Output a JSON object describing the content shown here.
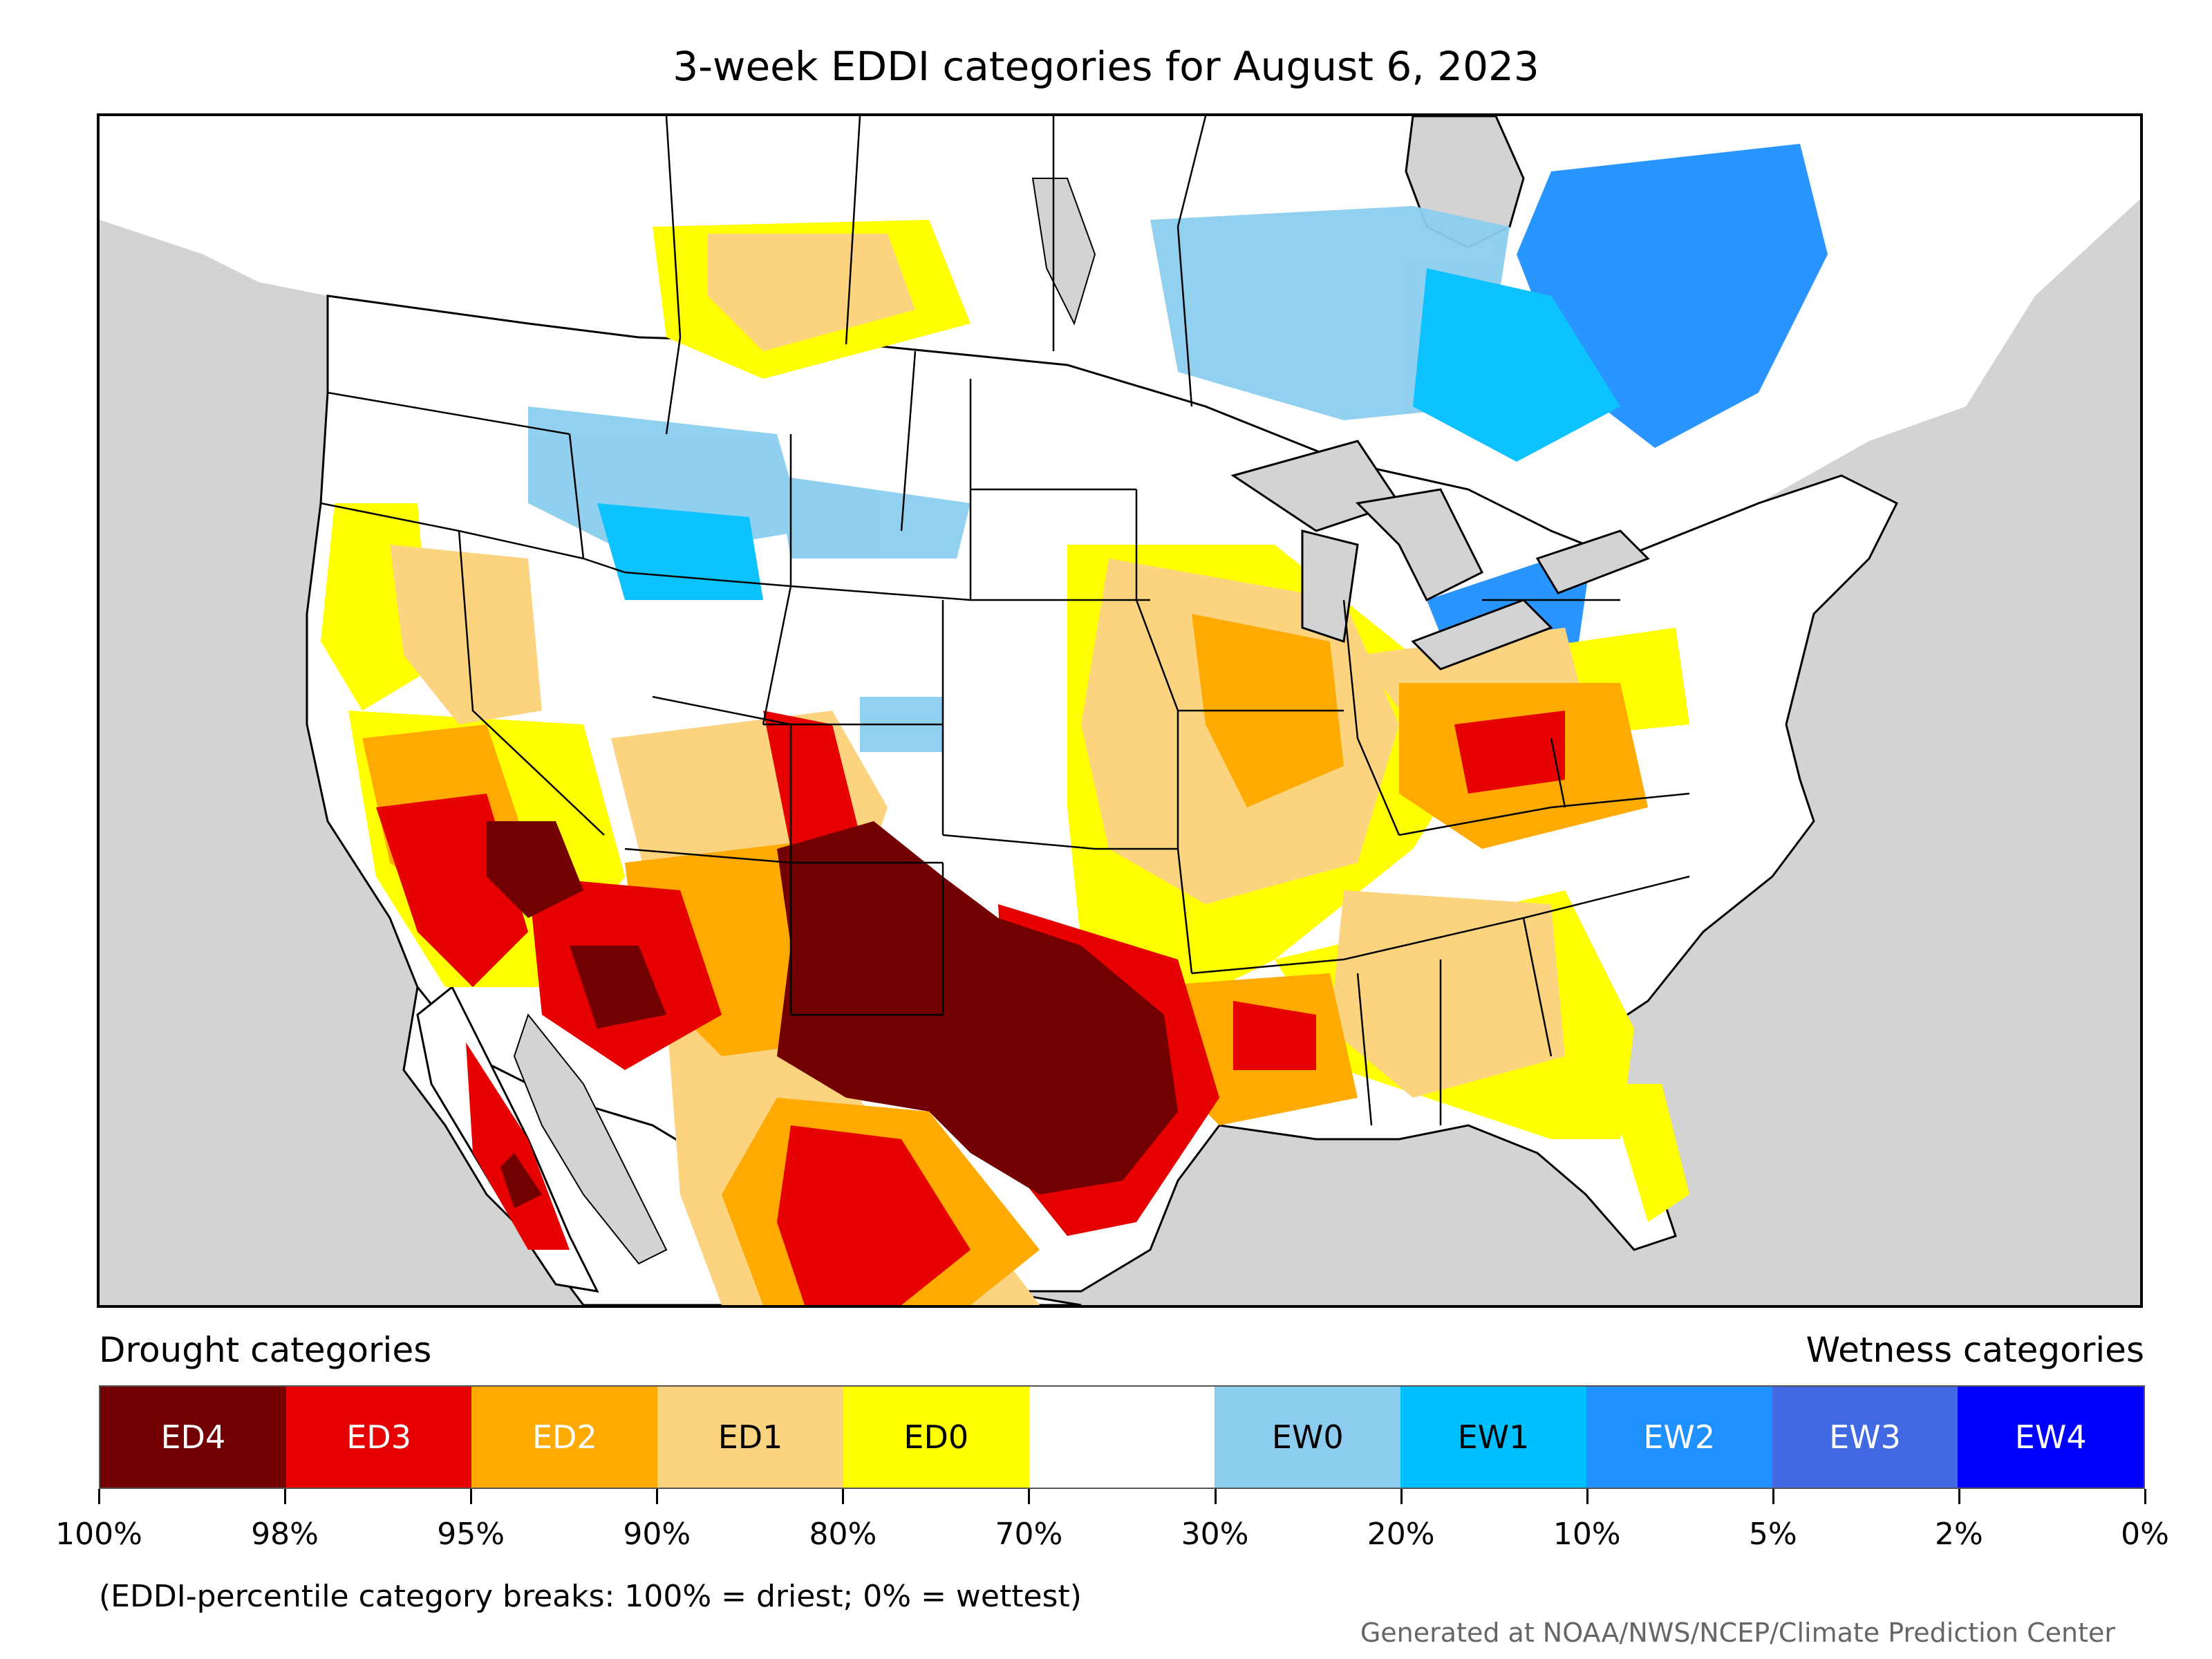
{
  "title": "3-week EDDI categories for August 6, 2023",
  "legend": {
    "drought_heading": "Drought categories",
    "wetness_heading": "Wetness categories",
    "categories": [
      {
        "label": "ED4",
        "color": "#730000",
        "text_color": "#ffffff"
      },
      {
        "label": "ED3",
        "color": "#e60000",
        "text_color": "#ffffff"
      },
      {
        "label": "ED2",
        "color": "#ffaa00",
        "text_color": "#ffffff"
      },
      {
        "label": "ED1",
        "color": "#fcd37f",
        "text_color": "#000000"
      },
      {
        "label": "ED0",
        "color": "#ffff00",
        "text_color": "#000000"
      },
      {
        "label": "",
        "color": "#ffffff",
        "text_color": "#000000"
      },
      {
        "label": "EW0",
        "color": "#8ccdef",
        "text_color": "#000000"
      },
      {
        "label": "EW1",
        "color": "#00bfff",
        "text_color": "#000000"
      },
      {
        "label": "EW2",
        "color": "#1e90ff",
        "text_color": "#ffffff"
      },
      {
        "label": "EW3",
        "color": "#4169e1",
        "text_color": "#ffffff"
      },
      {
        "label": "EW4",
        "color": "#0000ff",
        "text_color": "#ffffff"
      }
    ],
    "breaks": [
      "100%",
      "98%",
      "95%",
      "90%",
      "80%",
      "70%",
      "30%",
      "20%",
      "10%",
      "5%",
      "2%",
      "0%"
    ]
  },
  "footnote": "(EDDI-percentile category breaks: 100% = driest; 0% = wettest)",
  "credit": "Generated at NOAA/NWS/NCEP/Climate Prediction Center",
  "colors": {
    "ocean_land_outside": "#d3d3d3",
    "boundaries": "#000000"
  }
}
